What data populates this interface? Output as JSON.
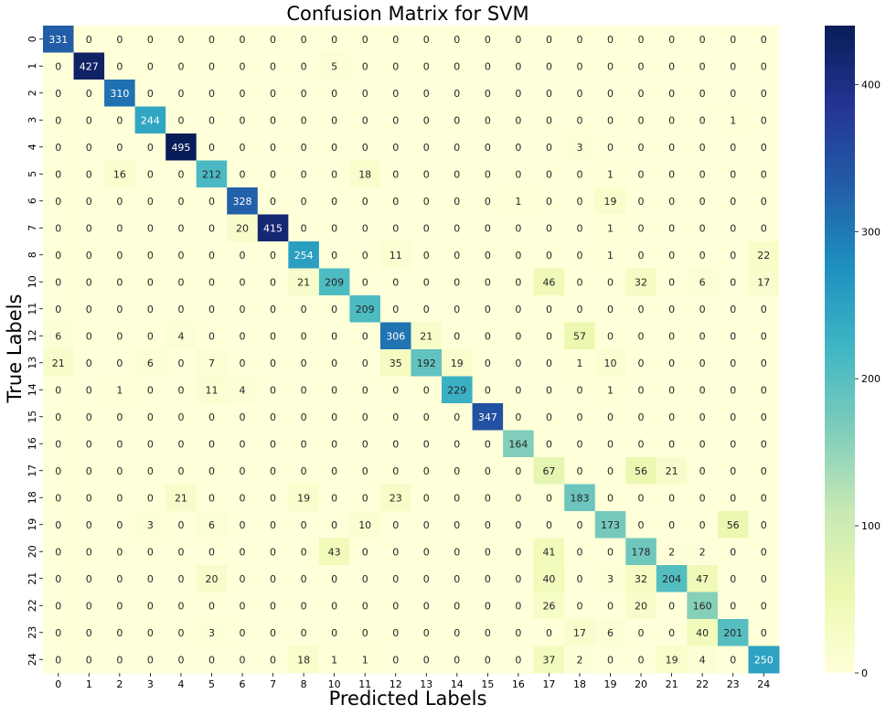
{
  "chart_data": {
    "type": "heatmap",
    "title": "Confusion Matrix for SVM",
    "xlabel": "Predicted Labels",
    "ylabel": "True Labels",
    "x_labels": [
      "0",
      "1",
      "2",
      "3",
      "4",
      "5",
      "6",
      "7",
      "8",
      "10",
      "11",
      "12",
      "13",
      "14",
      "15",
      "16",
      "17",
      "18",
      "19",
      "20",
      "21",
      "22",
      "23",
      "24"
    ],
    "y_labels": [
      "0",
      "1",
      "2",
      "3",
      "4",
      "5",
      "6",
      "7",
      "8",
      "10",
      "11",
      "12",
      "13",
      "14",
      "15",
      "16",
      "17",
      "18",
      "19",
      "20",
      "21",
      "22",
      "23",
      "24"
    ],
    "matrix": [
      [
        331,
        0,
        0,
        0,
        0,
        0,
        0,
        0,
        0,
        0,
        0,
        0,
        0,
        0,
        0,
        0,
        0,
        0,
        0,
        0,
        0,
        0,
        0,
        0
      ],
      [
        0,
        427,
        0,
        0,
        0,
        0,
        0,
        0,
        0,
        5,
        0,
        0,
        0,
        0,
        0,
        0,
        0,
        0,
        0,
        0,
        0,
        0,
        0,
        0
      ],
      [
        0,
        0,
        310,
        0,
        0,
        0,
        0,
        0,
        0,
        0,
        0,
        0,
        0,
        0,
        0,
        0,
        0,
        0,
        0,
        0,
        0,
        0,
        0,
        0
      ],
      [
        0,
        0,
        0,
        244,
        0,
        0,
        0,
        0,
        0,
        0,
        0,
        0,
        0,
        0,
        0,
        0,
        0,
        0,
        0,
        0,
        0,
        0,
        1,
        0
      ],
      [
        0,
        0,
        0,
        0,
        495,
        0,
        0,
        0,
        0,
        0,
        0,
        0,
        0,
        0,
        0,
        0,
        0,
        3,
        0,
        0,
        0,
        0,
        0,
        0
      ],
      [
        0,
        0,
        16,
        0,
        0,
        212,
        0,
        0,
        0,
        0,
        18,
        0,
        0,
        0,
        0,
        0,
        0,
        0,
        1,
        0,
        0,
        0,
        0,
        0
      ],
      [
        0,
        0,
        0,
        0,
        0,
        0,
        328,
        0,
        0,
        0,
        0,
        0,
        0,
        0,
        0,
        1,
        0,
        0,
        19,
        0,
        0,
        0,
        0,
        0
      ],
      [
        0,
        0,
        0,
        0,
        0,
        0,
        20,
        415,
        0,
        0,
        0,
        0,
        0,
        0,
        0,
        0,
        0,
        0,
        1,
        0,
        0,
        0,
        0,
        0
      ],
      [
        0,
        0,
        0,
        0,
        0,
        0,
        0,
        0,
        254,
        0,
        0,
        11,
        0,
        0,
        0,
        0,
        0,
        0,
        1,
        0,
        0,
        0,
        0,
        22
      ],
      [
        0,
        0,
        0,
        0,
        0,
        0,
        0,
        0,
        21,
        209,
        0,
        0,
        0,
        0,
        0,
        0,
        46,
        0,
        0,
        32,
        0,
        6,
        0,
        17
      ],
      [
        0,
        0,
        0,
        0,
        0,
        0,
        0,
        0,
        0,
        0,
        209,
        0,
        0,
        0,
        0,
        0,
        0,
        0,
        0,
        0,
        0,
        0,
        0,
        0
      ],
      [
        6,
        0,
        0,
        0,
        4,
        0,
        0,
        0,
        0,
        0,
        0,
        306,
        21,
        0,
        0,
        0,
        0,
        57,
        0,
        0,
        0,
        0,
        0,
        0
      ],
      [
        21,
        0,
        0,
        6,
        0,
        7,
        0,
        0,
        0,
        0,
        0,
        35,
        192,
        19,
        0,
        0,
        0,
        1,
        10,
        0,
        0,
        0,
        0,
        0
      ],
      [
        0,
        0,
        1,
        0,
        0,
        11,
        4,
        0,
        0,
        0,
        0,
        0,
        0,
        229,
        0,
        0,
        0,
        0,
        1,
        0,
        0,
        0,
        0,
        0
      ],
      [
        0,
        0,
        0,
        0,
        0,
        0,
        0,
        0,
        0,
        0,
        0,
        0,
        0,
        0,
        347,
        0,
        0,
        0,
        0,
        0,
        0,
        0,
        0,
        0
      ],
      [
        0,
        0,
        0,
        0,
        0,
        0,
        0,
        0,
        0,
        0,
        0,
        0,
        0,
        0,
        0,
        164,
        0,
        0,
        0,
        0,
        0,
        0,
        0,
        0
      ],
      [
        0,
        0,
        0,
        0,
        0,
        0,
        0,
        0,
        0,
        0,
        0,
        0,
        0,
        0,
        0,
        0,
        67,
        0,
        0,
        56,
        21,
        0,
        0,
        0
      ],
      [
        0,
        0,
        0,
        0,
        21,
        0,
        0,
        0,
        19,
        0,
        0,
        23,
        0,
        0,
        0,
        0,
        0,
        183,
        0,
        0,
        0,
        0,
        0,
        0
      ],
      [
        0,
        0,
        0,
        3,
        0,
        6,
        0,
        0,
        0,
        0,
        10,
        0,
        0,
        0,
        0,
        0,
        0,
        0,
        173,
        0,
        0,
        0,
        56,
        0
      ],
      [
        0,
        0,
        0,
        0,
        0,
        0,
        0,
        0,
        0,
        43,
        0,
        0,
        0,
        0,
        0,
        0,
        41,
        0,
        0,
        178,
        2,
        2,
        0,
        0
      ],
      [
        0,
        0,
        0,
        0,
        0,
        20,
        0,
        0,
        0,
        0,
        0,
        0,
        0,
        0,
        0,
        0,
        40,
        0,
        3,
        32,
        204,
        47,
        0,
        0
      ],
      [
        0,
        0,
        0,
        0,
        0,
        0,
        0,
        0,
        0,
        0,
        0,
        0,
        0,
        0,
        0,
        0,
        26,
        0,
        0,
        20,
        0,
        160,
        0,
        0
      ],
      [
        0,
        0,
        0,
        0,
        0,
        3,
        0,
        0,
        0,
        0,
        0,
        0,
        0,
        0,
        0,
        0,
        0,
        17,
        6,
        0,
        0,
        40,
        201,
        0
      ],
      [
        0,
        0,
        0,
        0,
        0,
        0,
        0,
        0,
        18,
        1,
        1,
        0,
        0,
        0,
        0,
        0,
        37,
        2,
        0,
        0,
        19,
        4,
        0,
        250
      ]
    ],
    "colormap": "YlGnBu",
    "color_range": [
      0,
      440
    ],
    "colorbar_ticks": [
      0,
      100,
      200,
      300,
      400
    ],
    "colors": {
      "low": "#ffffd9",
      "high": "#081d58"
    }
  }
}
